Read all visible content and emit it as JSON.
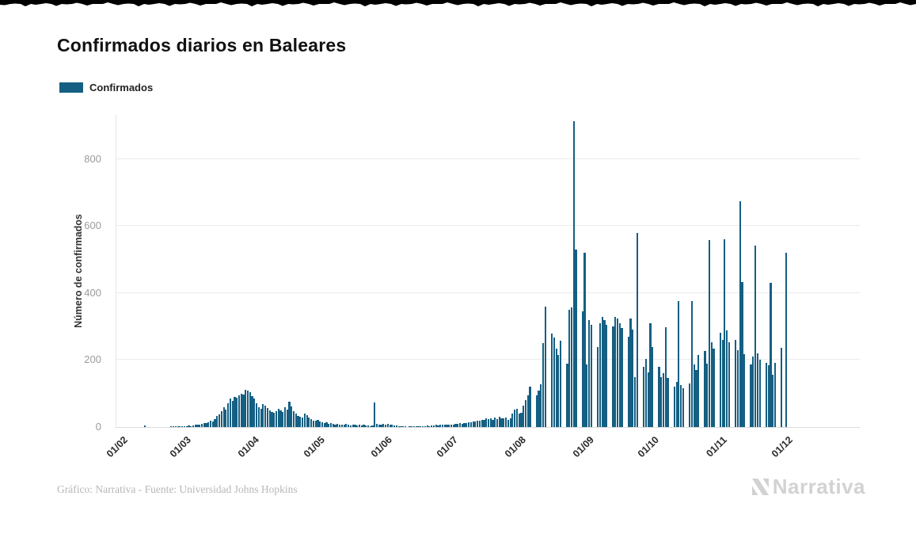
{
  "page": {
    "title": "Confirmados diarios en Baleares"
  },
  "legend": {
    "label": "Confirmados",
    "swatch_color": "#155f82"
  },
  "colors": {
    "bar": "#155f82",
    "grid": "#ebebeb",
    "y_tick_text": "#9b9b9b",
    "x_tick_text": "#2b2b2b",
    "footer_text": "#b7b7b7",
    "brand_text": "#d2d2d2",
    "top_strip": "#000000"
  },
  "footer": {
    "credit": "Gráfico: Narrativa - Fuente: Universidad Johns Hopkins"
  },
  "brand": {
    "name": "Narrativa"
  },
  "chart_data": {
    "type": "bar",
    "title": "Confirmados diarios en Baleares",
    "xlabel": "",
    "ylabel": "Número de confirmados",
    "ylim": [
      0,
      932
    ],
    "yticks": [
      0,
      200,
      400,
      600,
      800
    ],
    "grid": true,
    "legend_position": "top-left",
    "series_name": "Confirmados",
    "x_unit": "day",
    "xticks": [
      "01/02",
      "01/03",
      "01/04",
      "01/05",
      "01/06",
      "01/07",
      "01/08",
      "01/09",
      "01/10",
      "01/11",
      "01/12"
    ],
    "values_by_month": [
      [
        0,
        0,
        0,
        0,
        0,
        0,
        0,
        0,
        0,
        0,
        0,
        0,
        4,
        0,
        0,
        0,
        0,
        0,
        0,
        0,
        0,
        0,
        0,
        0,
        1,
        1,
        1,
        1,
        2
      ],
      [
        2,
        3,
        2,
        4,
        3,
        5,
        6,
        8,
        7,
        10,
        12,
        11,
        14,
        18,
        16,
        24,
        32,
        38,
        48,
        60,
        52,
        72,
        85,
        78,
        90,
        88,
        95,
        100,
        98,
        111,
        108
      ],
      [
        104,
        92,
        85,
        72,
        60,
        55,
        68,
        64,
        56,
        50,
        46,
        42,
        48,
        54,
        50,
        44,
        58,
        52,
        75,
        62,
        48,
        40,
        34,
        30,
        28,
        40,
        36,
        28,
        24,
        20
      ],
      [
        18,
        22,
        16,
        14,
        12,
        15,
        10,
        12,
        9,
        8,
        10,
        7,
        8,
        6,
        9,
        7,
        5,
        8,
        6,
        4,
        7,
        5,
        6,
        4,
        5,
        3,
        4,
        73,
        10,
        6,
        8
      ],
      [
        10,
        8,
        9,
        6,
        7,
        5,
        4,
        3,
        2,
        1,
        1,
        0,
        1,
        1,
        2,
        1,
        1,
        2,
        3,
        2,
        4,
        3,
        5,
        4,
        6,
        5,
        7,
        6,
        8,
        7
      ],
      [
        6,
        8,
        7,
        10,
        9,
        11,
        10,
        13,
        12,
        15,
        14,
        17,
        16,
        20,
        18,
        22,
        21,
        25,
        23,
        26,
        22,
        28,
        24,
        30,
        26,
        25,
        28,
        22,
        26,
        40,
        52
      ],
      [
        55,
        40,
        42,
        65,
        80,
        95,
        120,
        0,
        0,
        95,
        110,
        128,
        250,
        360,
        0,
        0,
        280,
        268,
        235,
        215,
        258,
        0,
        0,
        190,
        350,
        357,
        913,
        530,
        0,
        0,
        345
      ],
      [
        520,
        187,
        320,
        305,
        0,
        0,
        240,
        310,
        330,
        320,
        305,
        0,
        0,
        300,
        330,
        325,
        310,
        295,
        0,
        0,
        270,
        325,
        290,
        150,
        580,
        0,
        0,
        180,
        203,
        163
      ],
      [
        310,
        240,
        0,
        0,
        180,
        150,
        160,
        298,
        147,
        0,
        0,
        120,
        135,
        376,
        125,
        116,
        0,
        0,
        130,
        375,
        187,
        170,
        215,
        0,
        0,
        227,
        190,
        558,
        253,
        234,
        0
      ],
      [
        0,
        281,
        260,
        560,
        288,
        253,
        0,
        0,
        260,
        230,
        674,
        433,
        218,
        0,
        0,
        187,
        210,
        541,
        220,
        200,
        0,
        0,
        192,
        185,
        430,
        156,
        192,
        0,
        0,
        236
      ],
      [
        0,
        520
      ]
    ]
  }
}
